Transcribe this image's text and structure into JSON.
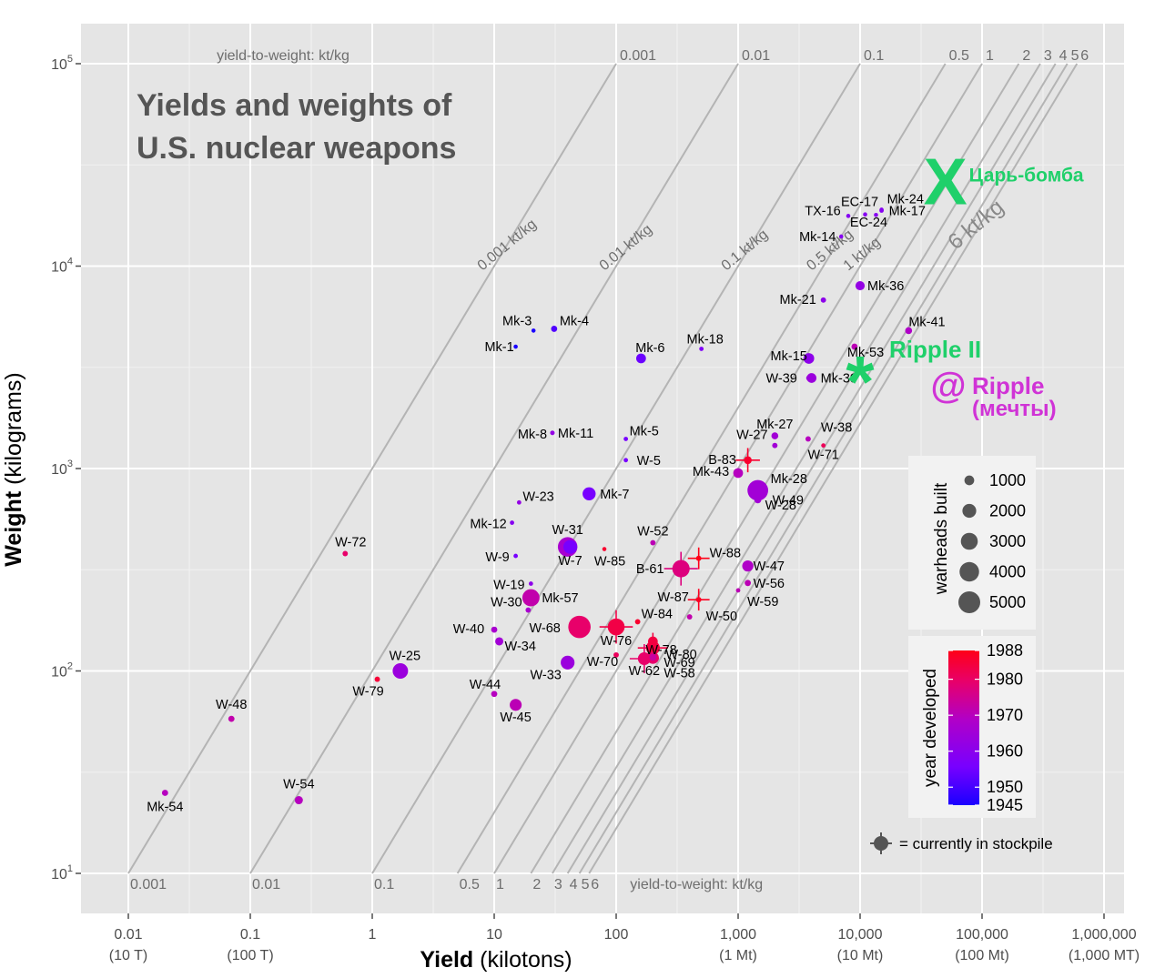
{
  "chart_data": {
    "type": "scatter",
    "title_lines": [
      "Yields and weights of",
      "U.S. nuclear weapons"
    ],
    "xlabel_bold": "Yield",
    "xlabel_unit": " (kilotons)",
    "ylabel_bold": "Weight",
    "ylabel_unit": " (kilograms)",
    "x_scale": "log",
    "y_scale": "log",
    "xlim": [
      0.0067,
      2300000
    ],
    "ylim": [
      5.8,
      190000
    ],
    "grid": true,
    "x_ticks": [
      {
        "v": 0.01,
        "l1": "0.01",
        "l2": "(10 T)"
      },
      {
        "v": 0.1,
        "l1": "0.1",
        "l2": "(100 T)"
      },
      {
        "v": 1,
        "l1": "1",
        "l2": ""
      },
      {
        "v": 10,
        "l1": "10",
        "l2": ""
      },
      {
        "v": 100,
        "l1": "100",
        "l2": ""
      },
      {
        "v": 1000,
        "l1": "1,000",
        "l2": "(1 Mt)"
      },
      {
        "v": 10000,
        "l1": "10,000",
        "l2": "(10 Mt)"
      },
      {
        "v": 100000,
        "l1": "100,000",
        "l2": "(100 Mt)"
      },
      {
        "v": 1000000,
        "l1": "1,000,000",
        "l2": "(1,000 MT)"
      }
    ],
    "y_ticks": [
      {
        "v": 10,
        "base": "10",
        "exp": "1"
      },
      {
        "v": 100,
        "base": "10",
        "exp": "2"
      },
      {
        "v": 1000,
        "base": "10",
        "exp": "3"
      },
      {
        "v": 10000,
        "base": "10",
        "exp": "4"
      },
      {
        "v": 100000,
        "base": "10",
        "exp": "5"
      }
    ],
    "ratio_lines": [
      0.001,
      0.01,
      0.1,
      0.5,
      1,
      2,
      3,
      4,
      5,
      6
    ],
    "ratio_top_label": "yield-to-weight: kt/kg",
    "ratio_bottom_label": "yield-to-weight: kt/kg",
    "ratio_top_values": [
      "0.001",
      "0.01",
      "0.1",
      "0.5",
      "1",
      "2",
      "3",
      "4",
      "5",
      "6"
    ],
    "ratio_bottom_values": [
      "0.001",
      "0.01",
      "0.1",
      "0.5",
      "1",
      "2",
      "3",
      "4",
      "5",
      "6"
    ],
    "ratio_diag_labels": [
      {
        "r": 0.001,
        "text": "0.001 kt/kg",
        "big": false
      },
      {
        "r": 0.01,
        "text": "0.01 kt/kg",
        "big": false
      },
      {
        "r": 0.1,
        "text": "0.1 kt/kg",
        "big": false
      },
      {
        "r": 0.5,
        "text": "0.5 kt/kg",
        "big": false
      },
      {
        "r": 1,
        "text": "1 kt/kg",
        "big": false
      },
      {
        "r": 6,
        "text": "6 kt/kg",
        "big": true
      }
    ],
    "points": [
      {
        "name": "Mk-54",
        "yield": 0.02,
        "weight": 25,
        "year": 1961,
        "built": 400,
        "stockpile": false
      },
      {
        "name": "W-48",
        "yield": 0.07,
        "weight": 58,
        "year": 1963,
        "built": 400,
        "stockpile": false
      },
      {
        "name": "W-54",
        "yield": 0.25,
        "weight": 23,
        "year": 1961,
        "built": 700,
        "stockpile": false
      },
      {
        "name": "W-72",
        "yield": 0.6,
        "weight": 380,
        "year": 1970,
        "built": 300,
        "stockpile": false
      },
      {
        "name": "W-79",
        "yield": 1.1,
        "weight": 91,
        "year": 1981,
        "built": 300,
        "stockpile": false
      },
      {
        "name": "W-25",
        "yield": 1.7,
        "weight": 100,
        "year": 1957,
        "built": 2500,
        "stockpile": false
      },
      {
        "name": "Mk-3",
        "yield": 21,
        "weight": 4800,
        "year": 1945,
        "built": 100,
        "stockpile": false
      },
      {
        "name": "Mk-1",
        "yield": 15,
        "weight": 4000,
        "year": 1945,
        "built": 100,
        "stockpile": false
      },
      {
        "name": "Mk-4",
        "yield": 31,
        "weight": 4900,
        "year": 1949,
        "built": 400,
        "stockpile": false
      },
      {
        "name": "Mk-8",
        "yield": 30,
        "weight": 1500,
        "year": 1952,
        "built": 200,
        "stockpile": false
      },
      {
        "name": "Mk-11",
        "yield": 30,
        "weight": 1500,
        "year": 1956,
        "built": 200,
        "stockpile": false
      },
      {
        "name": "W-23",
        "yield": 16,
        "weight": 680,
        "year": 1956,
        "built": 200,
        "stockpile": false
      },
      {
        "name": "Mk-12",
        "yield": 14,
        "weight": 540,
        "year": 1954,
        "built": 200,
        "stockpile": false
      },
      {
        "name": "W-9",
        "yield": 15,
        "weight": 370,
        "year": 1952,
        "built": 200,
        "stockpile": false
      },
      {
        "name": "W-19",
        "yield": 20,
        "weight": 270,
        "year": 1955,
        "built": 200,
        "stockpile": false
      },
      {
        "name": "W-30",
        "yield": 19,
        "weight": 200,
        "year": 1959,
        "built": 300,
        "stockpile": false
      },
      {
        "name": "Mk-57",
        "yield": 20,
        "weight": 230,
        "year": 1963,
        "built": 3100,
        "stockpile": false
      },
      {
        "name": "W-40",
        "yield": 10,
        "weight": 160,
        "year": 1959,
        "built": 400,
        "stockpile": false
      },
      {
        "name": "W-34",
        "yield": 11,
        "weight": 140,
        "year": 1958,
        "built": 700,
        "stockpile": false
      },
      {
        "name": "W-44",
        "yield": 10,
        "weight": 77,
        "year": 1961,
        "built": 400,
        "stockpile": false
      },
      {
        "name": "W-45",
        "yield": 15,
        "weight": 68,
        "year": 1962,
        "built": 1500,
        "stockpile": false
      },
      {
        "name": "W-33",
        "yield": 40,
        "weight": 110,
        "year": 1957,
        "built": 2000,
        "stockpile": false
      },
      {
        "name": "W-31",
        "yield": 40,
        "weight": 410,
        "year": 1959,
        "built": 4000,
        "stockpile": false
      },
      {
        "name": "W-7",
        "yield": 42,
        "weight": 410,
        "year": 1952,
        "built": 2000,
        "stockpile": false
      },
      {
        "name": "W-68",
        "yield": 50,
        "weight": 165,
        "year": 1970,
        "built": 5250,
        "stockpile": false
      },
      {
        "name": "W-85",
        "yield": 80,
        "weight": 400,
        "year": 1983,
        "built": 150,
        "stockpile": false
      },
      {
        "name": "Mk-7",
        "yield": 60,
        "weight": 750,
        "year": 1952,
        "built": 1800,
        "stockpile": false
      },
      {
        "name": "Mk-6",
        "yield": 160,
        "weight": 3500,
        "year": 1951,
        "built": 1000,
        "stockpile": false
      },
      {
        "name": "Mk-5",
        "yield": 120,
        "weight": 1400,
        "year": 1952,
        "built": 200,
        "stockpile": false
      },
      {
        "name": "W-5",
        "yield": 120,
        "weight": 1100,
        "year": 1952,
        "built": 200,
        "stockpile": false
      },
      {
        "name": "W-52",
        "yield": 200,
        "weight": 430,
        "year": 1962,
        "built": 300,
        "stockpile": false
      },
      {
        "name": "W-76",
        "yield": 100,
        "weight": 165,
        "year": 1978,
        "built": 3000,
        "stockpile": true
      },
      {
        "name": "W-70",
        "yield": 100,
        "weight": 120,
        "year": 1973,
        "built": 300,
        "stockpile": false
      },
      {
        "name": "W-84",
        "yield": 150,
        "weight": 175,
        "year": 1983,
        "built": 300,
        "stockpile": false
      },
      {
        "name": "W-78",
        "yield": 200,
        "weight": 140,
        "year": 1979,
        "built": 1000,
        "stockpile": false
      },
      {
        "name": "W-80",
        "yield": 200,
        "weight": 130,
        "year": 1979,
        "built": 2000,
        "stockpile": true
      },
      {
        "name": "W-62",
        "yield": 170,
        "weight": 115,
        "year": 1970,
        "built": 1700,
        "stockpile": true
      },
      {
        "name": "W-69",
        "yield": 200,
        "weight": 116,
        "year": 1970,
        "built": 1500,
        "stockpile": false
      },
      {
        "name": "W-58",
        "yield": 200,
        "weight": 117,
        "year": 1964,
        "built": 500,
        "stockpile": false
      },
      {
        "name": "B-61",
        "yield": 340,
        "weight": 320,
        "year": 1968,
        "built": 3150,
        "stockpile": true
      },
      {
        "name": "W-87",
        "yield": 475,
        "weight": 225,
        "year": 1986,
        "built": 300,
        "stockpile": true
      },
      {
        "name": "W-88",
        "yield": 475,
        "weight": 360,
        "year": 1988,
        "built": 300,
        "stockpile": true
      },
      {
        "name": "W-50",
        "yield": 400,
        "weight": 185,
        "year": 1963,
        "built": 300,
        "stockpile": false
      },
      {
        "name": "Mk-18",
        "yield": 500,
        "weight": 3900,
        "year": 1953,
        "built": 200,
        "stockpile": false
      },
      {
        "name": "B-83",
        "yield": 1200,
        "weight": 1100,
        "year": 1983,
        "built": 650,
        "stockpile": true
      },
      {
        "name": "W-27",
        "yield": 2000,
        "weight": 1300,
        "year": 1958,
        "built": 300,
        "stockpile": false
      },
      {
        "name": "Mk-43",
        "yield": 1000,
        "weight": 950,
        "year": 1961,
        "built": 1000,
        "stockpile": false
      },
      {
        "name": "Mk-27",
        "yield": 2000,
        "weight": 1450,
        "year": 1958,
        "built": 500,
        "stockpile": false
      },
      {
        "name": "W-38",
        "yield": 3750,
        "weight": 1400,
        "year": 1961,
        "built": 300,
        "stockpile": false
      },
      {
        "name": "W-71",
        "yield": 5000,
        "weight": 1300,
        "year": 1974,
        "built": 200,
        "stockpile": false
      },
      {
        "name": "Mk-28",
        "yield": 1450,
        "weight": 780,
        "year": 1958,
        "built": 4500,
        "stockpile": false
      },
      {
        "name": "W-49",
        "yield": 1450,
        "weight": 700,
        "year": 1958,
        "built": 500,
        "stockpile": false
      },
      {
        "name": "W-28",
        "yield": 1450,
        "weight": 780,
        "year": 1958,
        "built": 400,
        "stockpile": false
      },
      {
        "name": "W-47",
        "yield": 1200,
        "weight": 330,
        "year": 1960,
        "built": 1300,
        "stockpile": false
      },
      {
        "name": "W-56",
        "yield": 1200,
        "weight": 272,
        "year": 1962,
        "built": 400,
        "stockpile": false
      },
      {
        "name": "W-59",
        "yield": 1000,
        "weight": 250,
        "year": 1962,
        "built": 200,
        "stockpile": false
      },
      {
        "name": "Mk-15",
        "yield": 3800,
        "weight": 3500,
        "year": 1955,
        "built": 1200,
        "stockpile": false
      },
      {
        "name": "W-39",
        "yield": 3800,
        "weight": 2800,
        "year": 1957,
        "built": 300,
        "stockpile": false
      },
      {
        "name": "Mk-39",
        "yield": 4000,
        "weight": 2800,
        "year": 1957,
        "built": 1000,
        "stockpile": false
      },
      {
        "name": "Mk-53",
        "yield": 9000,
        "weight": 4000,
        "year": 1962,
        "built": 400,
        "stockpile": false
      },
      {
        "name": "Mk-21",
        "yield": 5000,
        "weight": 6800,
        "year": 1955,
        "built": 300,
        "stockpile": false
      },
      {
        "name": "Mk-36",
        "yield": 10000,
        "weight": 8000,
        "year": 1956,
        "built": 900,
        "stockpile": false
      },
      {
        "name": "Mk-41",
        "yield": 25000,
        "weight": 4800,
        "year": 1960,
        "built": 500,
        "stockpile": false
      },
      {
        "name": "Mk-14",
        "yield": 7000,
        "weight": 14000,
        "year": 1954,
        "built": 100,
        "stockpile": false
      },
      {
        "name": "TX-16",
        "yield": 8000,
        "weight": 17700,
        "year": 1954,
        "built": 100,
        "stockpile": false
      },
      {
        "name": "EC-17",
        "yield": 11000,
        "weight": 18000,
        "year": 1954,
        "built": 100,
        "stockpile": false
      },
      {
        "name": "EC-24",
        "yield": 13500,
        "weight": 17900,
        "year": 1954,
        "built": 100,
        "stockpile": false
      },
      {
        "name": "Mk-24",
        "yield": 15000,
        "weight": 19000,
        "year": 1954,
        "built": 100,
        "stockpile": false
      },
      {
        "name": "Mk-17",
        "yield": 15000,
        "weight": 18800,
        "year": 1954,
        "built": 200,
        "stockpile": false
      }
    ],
    "annotations": [
      {
        "text": "Царь-бомба",
        "mark": "X",
        "color": "#1fd06a",
        "yield": 50000,
        "weight": 27000
      },
      {
        "text": "Ripple II",
        "mark": "*",
        "color": "#1fd06a",
        "yield": 10000,
        "weight": 3000
      },
      {
        "text_line1": "Ripple",
        "text_line2": "(мечты)",
        "mark": "@",
        "color": "#d033d6"
      }
    ],
    "legend_size": {
      "title": "warheads built",
      "entries": [
        {
          "value": 1000,
          "label": "1000"
        },
        {
          "value": 2000,
          "label": "2000"
        },
        {
          "value": 3000,
          "label": "3000"
        },
        {
          "value": 4000,
          "label": "4000"
        },
        {
          "value": 5000,
          "label": "5000"
        }
      ]
    },
    "legend_color": {
      "title": "year developed",
      "range": [
        1945,
        1988
      ],
      "ticks": [
        "1988",
        "1980",
        "1970",
        "1960",
        "1950",
        "1945"
      ],
      "tick_values": [
        1988,
        1980,
        1970,
        1960,
        1950,
        1945
      ],
      "colors": [
        "#0000ff",
        "#8800ff",
        "#c800b4",
        "#ff0000"
      ]
    },
    "stockpile_note": "= currently in stockpile",
    "background_color": "#e5e5e5"
  }
}
